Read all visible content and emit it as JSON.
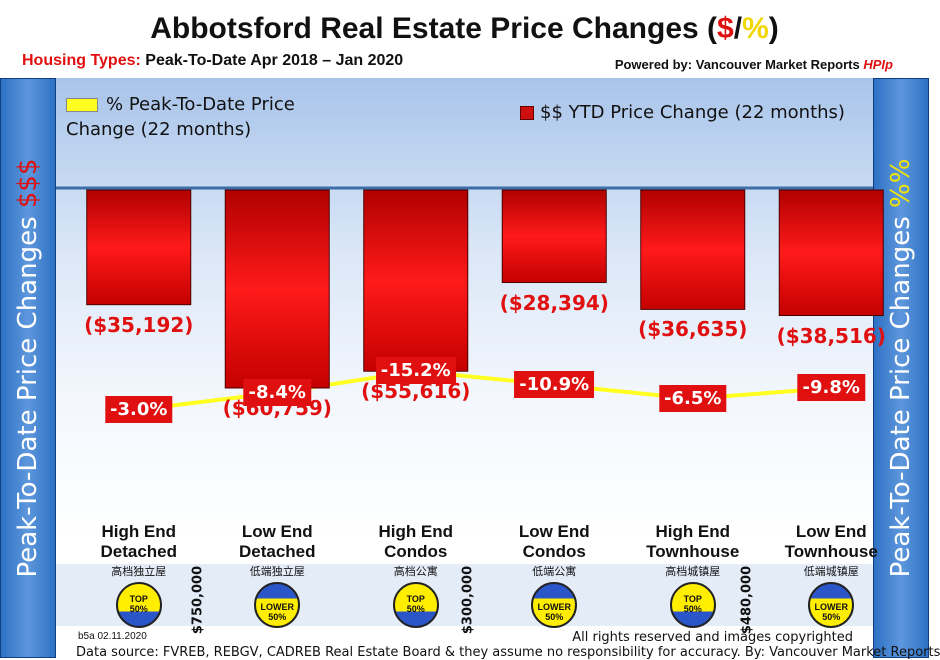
{
  "header": {
    "title_prefix": "Abbotsford Real Estate Price Changes (",
    "title_dollar": "$",
    "title_slash": "/",
    "title_pct": "%",
    "title_suffix": ")",
    "subtitle_label": "Housing Types:",
    "subtitle_value": "Peak-To-Date Apr 2018 – Jan 2020",
    "powered_label": "Powered by:",
    "powered_brand": "Vancouver Market Reports",
    "powered_hp": "HPIp"
  },
  "side_left": {
    "text": "Peak-To-Date Price Changes",
    "symbol": "$$$"
  },
  "side_right": {
    "text": "Peak-To-Date  Price  Changes",
    "symbol": "%%"
  },
  "legend": {
    "pct_label": "% Peak-To-Date Price Change (22 months)",
    "dollar_label": "$$ YTD Price Change (22 months)"
  },
  "colors": {
    "bar": "#cc1010",
    "line": "#ffff20",
    "accent_red": "#e01010"
  },
  "chart_data": {
    "type": "bar",
    "categories": [
      "High End Detached",
      "Low End Detached",
      "High End Condos",
      "Low End Condos",
      "High End Townhouse",
      "Low End Townhouse"
    ],
    "series": [
      {
        "type": "bar",
        "values": [
          -35192,
          -60759,
          -55616,
          -28394,
          -36635,
          -38516
        ],
        "labels": [
          "($35,192)",
          "($60,759)",
          "($55,616)",
          "($28,394)",
          "($36,635)",
          "($38,516)"
        ]
      },
      {
        "type": "line",
        "values": [
          -3.0,
          -8.4,
          -15.2,
          -10.9,
          -6.5,
          -9.8
        ],
        "labels": [
          "-3.0%",
          "-8.4%",
          "-15.2%",
          "-10.9%",
          "-6.5%",
          "-9.8%"
        ]
      }
    ],
    "ylim": [
      -60759,
      0
    ]
  },
  "categories_cn": [
    "高档独立屋",
    "低端独立屋",
    "高档公寓",
    "低端公寓",
    "高档城镇屋",
    "低端城镇屋"
  ],
  "badges": [
    {
      "kind": "top",
      "line1": "TOP",
      "line2": "50%"
    },
    {
      "kind": "lower",
      "line1": "LOWER",
      "line2": "50%"
    },
    {
      "kind": "top",
      "line1": "TOP",
      "line2": "50%"
    },
    {
      "kind": "lower",
      "line1": "LOWER",
      "line2": "50%"
    },
    {
      "kind": "top",
      "line1": "TOP",
      "line2": "50%"
    },
    {
      "kind": "lower",
      "line1": "LOWER",
      "line2": "50%"
    }
  ],
  "thresholds": [
    "$750,000",
    "$300,000",
    "$480,000"
  ],
  "footer": {
    "code": "b5a 02.11.2020",
    "rights": "All rights reserved and  images copyrighted",
    "source": "Data source: FVREB, REBGV, CADREB Real Estate Board & they assume no responsibility for accuracy. By: Vancouver Market Reports"
  }
}
